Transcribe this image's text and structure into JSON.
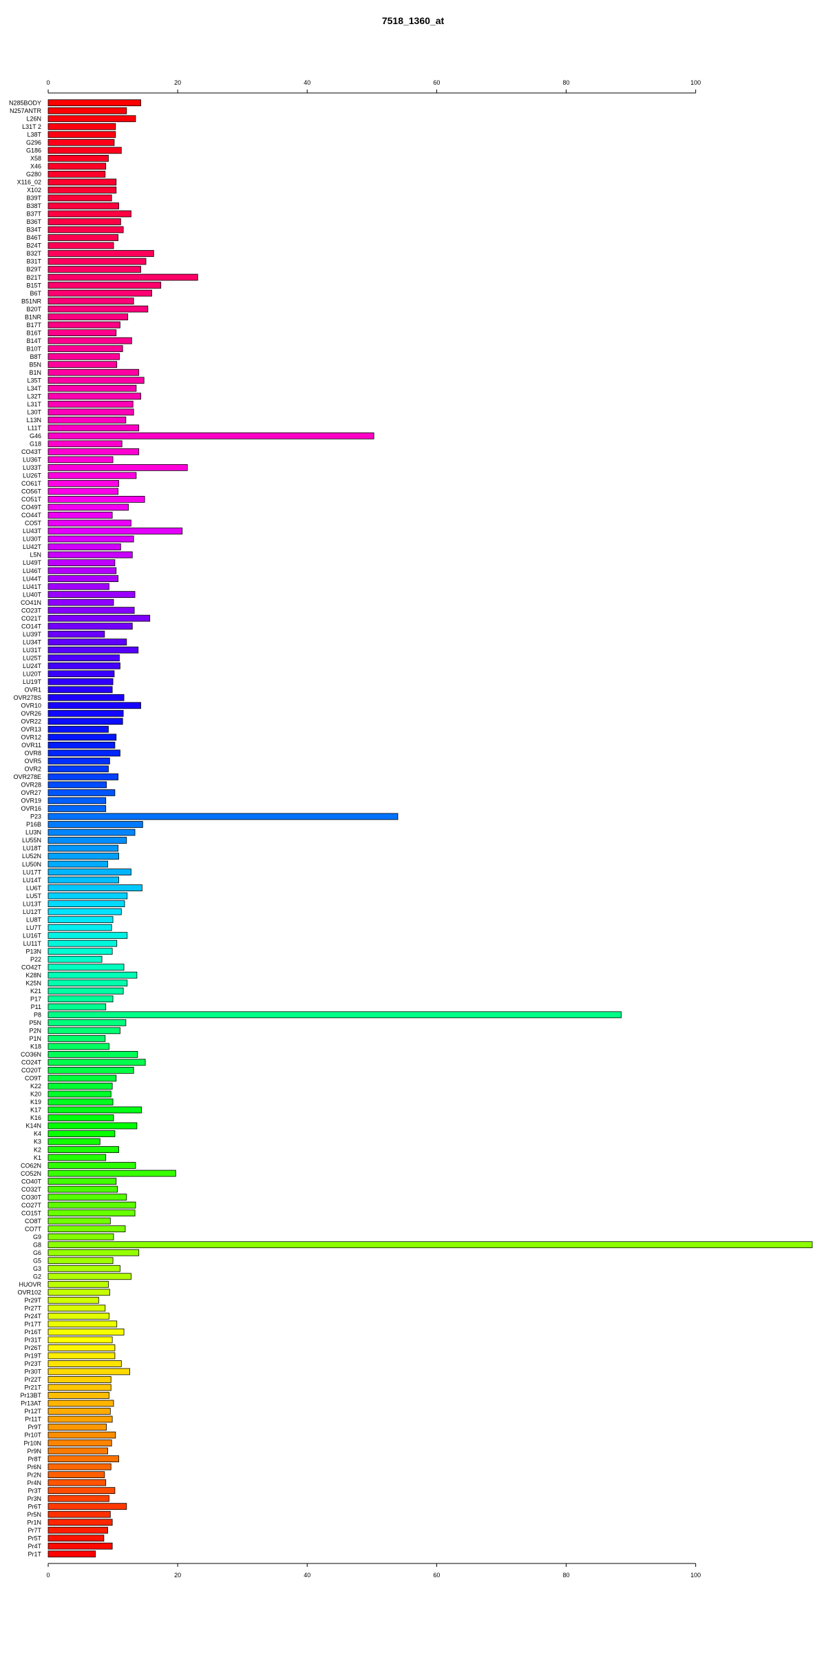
{
  "chart_data": {
    "type": "bar",
    "orientation": "horizontal",
    "title": "7518_1360_at",
    "xlabel": "",
    "ylabel": "",
    "xlim": [
      0,
      118
    ],
    "x_ticks": [
      0,
      20,
      40,
      60,
      80,
      100
    ],
    "x_tick_labels": [
      "0",
      "20",
      "40",
      "60",
      "80",
      "100"
    ],
    "grid": false,
    "legend": "none",
    "categories": [
      "N285BODY",
      "N257ANTR",
      "L26N",
      "L31T 2",
      "L38T",
      "G296",
      "G186",
      "X58",
      "X46",
      "G280",
      "X116_02",
      "X102",
      "B39T",
      "B38T",
      "B37T",
      "B36T",
      "B34T",
      "B46T",
      "B24T",
      "B32T",
      "B31T",
      "B29T",
      "B21T",
      "B15T",
      "B6T",
      "B51NR",
      "B20T",
      "B1NR",
      "B17T",
      "B16T",
      "B14T",
      "B10T",
      "B8T",
      "B5N",
      "B1N",
      "L35T",
      "L34T",
      "L32T",
      "L31T",
      "L30T",
      "L13N",
      "L11T",
      "G46",
      "G18",
      "CO43T",
      "LU36T",
      "LU33T",
      "LU26T",
      "CO61T",
      "CO56T",
      "CO51T",
      "CO49T",
      "CO44T",
      "CO5T",
      "LU43T",
      "LU30T",
      "LU42T",
      "L5N",
      "LU49T",
      "LU46T",
      "LU44T",
      "LU41T",
      "LU40T",
      "CO41N",
      "CO23T",
      "CO21T",
      "CO14T",
      "LU39T",
      "LU34T",
      "LU31T",
      "LU25T",
      "LU24T",
      "LU20T",
      "LU19T",
      "OVR1",
      "OVR278S",
      "OVR10",
      "OVR26",
      "OVR22",
      "OVR13",
      "OVR12",
      "OVR11",
      "OVR8",
      "OVR5",
      "OVR2",
      "OVR278E",
      "OVR28",
      "OVR27",
      "OVR19",
      "OVR16",
      "P23",
      "P16B",
      "LU3N",
      "LU55N",
      "LU18T",
      "LU52N",
      "LU50N",
      "LU17T",
      "LU14T",
      "LU6T",
      "LU5T",
      "LU13T",
      "LU12T",
      "LU8T",
      "LU7T",
      "LU16T",
      "LU11T",
      "P13N",
      "P22",
      "CO42T",
      "K28N",
      "K25N",
      "K21",
      "P17",
      "P11",
      "P8",
      "P5N",
      "P2N",
      "P1N",
      "K18",
      "CO36N",
      "CO24T",
      "CO20T",
      "CO9T",
      "K22",
      "K20",
      "K19",
      "K17",
      "K16",
      "K14N",
      "K4",
      "K3",
      "K2",
      "K1",
      "CO62N",
      "CO52N",
      "CO40T",
      "CO32T",
      "CO30T",
      "CO27T",
      "CO15T",
      "CO8T",
      "CO7T",
      "G9",
      "G8",
      "G6",
      "G5",
      "G3",
      "G2",
      "HUOVR",
      "OVR102",
      "Pr29T",
      "Pr27T",
      "Pr24T",
      "Pr17T",
      "Pr16T",
      "Pr31T",
      "Pr26T",
      "Pr19T",
      "Pr23T",
      "Pr30T",
      "Pr22T",
      "Pr21T",
      "Pr13BT",
      "Pr13AT",
      "Pr12T",
      "Pr11T",
      "Pr9T",
      "Pr10T",
      "Pr10N",
      "Pr9N",
      "Pr8T",
      "Pr6N",
      "Pr2N",
      "Pr4N",
      "Pr3T",
      "Pr3N",
      "Pr6T",
      "Pr5N",
      "Pr1N",
      "Pr7T",
      "Pr5T",
      "Pr4T",
      "Pr1T"
    ],
    "values": [
      14.3,
      12.1,
      13.5,
      10.4,
      10.4,
      10.2,
      11.3,
      9.3,
      8.9,
      8.8,
      10.5,
      10.5,
      9.8,
      10.9,
      12.8,
      11.2,
      11.6,
      10.8,
      10.1,
      16.3,
      15.1,
      14.3,
      23.1,
      17.4,
      16.0,
      13.2,
      15.4,
      12.3,
      11.1,
      10.5,
      12.9,
      11.5,
      11.0,
      10.6,
      14.0,
      14.8,
      13.6,
      14.3,
      13.1,
      13.2,
      12.0,
      14.0,
      50.3,
      11.4,
      14.0,
      10.0,
      21.5,
      13.6,
      10.9,
      10.8,
      14.9,
      12.4,
      9.9,
      12.8,
      20.7,
      13.2,
      11.2,
      13.0,
      10.3,
      10.5,
      10.8,
      9.4,
      13.4,
      10.1,
      13.3,
      15.7,
      13.0,
      8.7,
      12.1,
      13.9,
      11.0,
      11.1,
      10.2,
      10.0,
      9.9,
      11.7,
      14.3,
      11.6,
      11.5,
      9.3,
      10.5,
      10.3,
      11.1,
      9.5,
      9.3,
      10.8,
      9.0,
      10.3,
      8.9,
      8.9,
      54.0,
      14.6,
      13.4,
      12.1,
      10.8,
      10.9,
      9.2,
      12.8,
      10.9,
      14.5,
      12.2,
      11.8,
      11.3,
      10.0,
      9.8,
      12.2,
      10.6,
      9.9,
      8.3,
      11.7,
      13.7,
      12.2,
      11.6,
      10.0,
      8.9,
      88.5,
      12.0,
      11.1,
      8.8,
      9.4,
      13.8,
      15.0,
      13.2,
      10.5,
      9.9,
      9.7,
      10.0,
      14.4,
      10.1,
      13.7,
      10.3,
      8.0,
      10.9,
      8.9,
      13.5,
      19.7,
      10.5,
      10.7,
      12.1,
      13.5,
      13.4,
      9.6,
      11.9,
      10.1,
      118.0,
      14.0,
      10.0,
      11.1,
      12.8,
      9.3,
      9.5,
      7.8,
      8.8,
      9.4,
      10.6,
      11.7,
      9.9,
      10.3,
      10.3,
      11.3,
      12.6,
      9.7,
      9.7,
      9.4,
      10.1,
      9.6,
      9.9,
      9.0,
      10.4,
      9.8,
      9.2,
      10.9,
      9.7,
      8.7,
      8.9,
      10.3,
      9.4,
      12.1,
      9.6,
      9.9,
      9.2,
      8.6,
      9.9,
      7.3
    ],
    "colors": [
      "#ff0000",
      "#ff001a",
      "#ff0033",
      "#ff004d",
      "#ff0066",
      "#ff0080",
      "#ff0099",
      "#ff00b3",
      "#ff00cc",
      "#ff00e6",
      "#e600ff",
      "#b300ff",
      "#8000ff",
      "#4d00ff",
      "#1a00ff",
      "#001aff",
      "#004dff",
      "#0080ff",
      "#00b3ff",
      "#00e6ff",
      "#00ffcc",
      "#00ff99",
      "#00ff66",
      "#00ff33",
      "#00ff00",
      "#33ff00",
      "#66ff00",
      "#99ff00",
      "#ccff00",
      "#ffff00",
      "#ffcc00",
      "#ff9900",
      "#ff6600",
      "#ff3300",
      "#ff0000"
    ]
  }
}
